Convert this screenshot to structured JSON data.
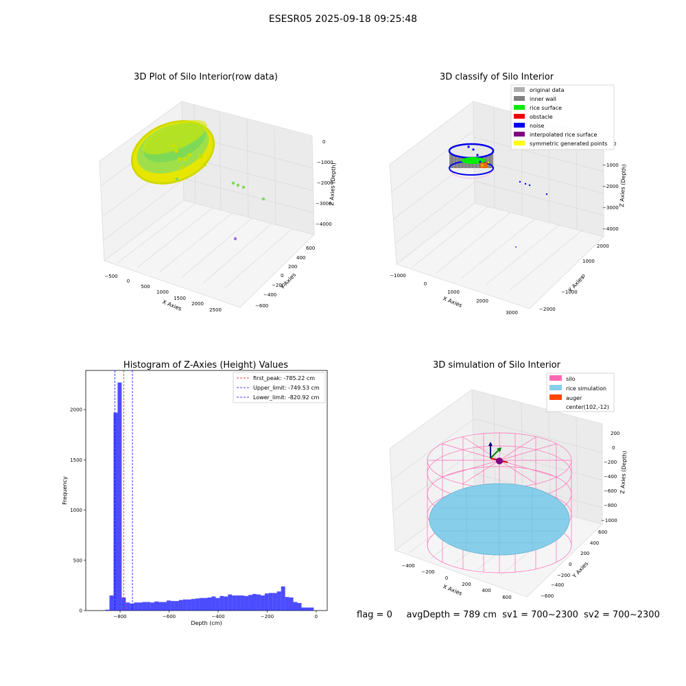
{
  "suptitle": "ESESR05 2025-09-18 09:25:48",
  "panels": {
    "raw": {
      "title": "3D Plot of Silo Interior(row data)",
      "xlabel": "X Axies",
      "ylabel": "Y Axies",
      "zlabel": "Z Axies (Depth)",
      "xticks": [
        "−500",
        "0",
        "500",
        "1000",
        "1500",
        "2000",
        "2500"
      ],
      "yticks": [
        "−600",
        "−400",
        "−200",
        "0",
        "200",
        "400",
        "600"
      ],
      "zticks": [
        "0",
        "−1000",
        "−2000",
        "−3000",
        "−4000"
      ]
    },
    "classify": {
      "title": "3D classify of Silo Interior",
      "xlabel": "X Axies",
      "ylabel": "Y Axies",
      "zlabel": "Z Axies (Depth)",
      "xticks": [
        "−1000",
        "0",
        "1000",
        "2000",
        "3000"
      ],
      "yticks": [
        "−2000",
        "−1000",
        "0",
        "1000",
        "2000"
      ],
      "zticks": [
        "0",
        "−1000",
        "−2000",
        "−3000",
        "−4000"
      ],
      "legend": [
        {
          "label": "original data",
          "color": "#b0b0b0"
        },
        {
          "label": "inner wall",
          "color": "#808080"
        },
        {
          "label": "rice surface",
          "color": "#00ee00"
        },
        {
          "label": "obstacle",
          "color": "#ee0000"
        },
        {
          "label": "noise",
          "color": "#0000ee"
        },
        {
          "label": "interpolated rice surface",
          "color": "#800080"
        },
        {
          "label": "symmetric generated points",
          "color": "#ffff00"
        }
      ]
    },
    "simulation": {
      "title": "3D simulation of Silo Interior",
      "xlabel": "X Axies",
      "ylabel": "Y Axies",
      "zlabel": "Z Axies (Depth)",
      "xticks": [
        "−400",
        "−200",
        "0",
        "200",
        "400",
        "600"
      ],
      "yticks": [
        "−600",
        "−400",
        "−200",
        "0",
        "200",
        "400",
        "600"
      ],
      "zticks": [
        "200",
        "0",
        "−200",
        "−400",
        "−600",
        "−800",
        "−1000"
      ],
      "legend": [
        {
          "label": "silo",
          "color": "#ff69b4"
        },
        {
          "label": "rice simulation",
          "color": "#87ceeb"
        },
        {
          "label": "auger",
          "color": "#ff4500"
        },
        {
          "label": "center(102,-12)",
          "color": ""
        }
      ]
    }
  },
  "chart_data": {
    "type": "bar",
    "title": "Histogram of Z-Axies (Height) Values",
    "xlabel": "Depth (cm)",
    "ylabel": "Frequency",
    "xlim": [
      -940,
      45
    ],
    "ylim": [
      0,
      2390
    ],
    "xticks": [
      -800,
      -600,
      -400,
      -200,
      0
    ],
    "yticks": [
      0,
      500,
      1000,
      1500,
      2000
    ],
    "bar_color": "#0000ff",
    "bin_width": 16.7,
    "bins": [
      {
        "x": -851.7,
        "v": 8
      },
      {
        "x": -835.0,
        "v": 150
      },
      {
        "x": -818.3,
        "v": 1970
      },
      {
        "x": -801.7,
        "v": 2270
      },
      {
        "x": -785.0,
        "v": 130
      },
      {
        "x": -768.3,
        "v": 80
      },
      {
        "x": -751.7,
        "v": 70
      },
      {
        "x": -735.0,
        "v": 80
      },
      {
        "x": -718.3,
        "v": 80
      },
      {
        "x": -701.7,
        "v": 85
      },
      {
        "x": -685.0,
        "v": 85
      },
      {
        "x": -668.3,
        "v": 80
      },
      {
        "x": -651.7,
        "v": 90
      },
      {
        "x": -635.0,
        "v": 85
      },
      {
        "x": -618.3,
        "v": 85
      },
      {
        "x": -601.7,
        "v": 100
      },
      {
        "x": -585.0,
        "v": 95
      },
      {
        "x": -568.3,
        "v": 95
      },
      {
        "x": -551.7,
        "v": 105
      },
      {
        "x": -535.0,
        "v": 110
      },
      {
        "x": -518.3,
        "v": 110
      },
      {
        "x": -501.7,
        "v": 115
      },
      {
        "x": -485.0,
        "v": 120
      },
      {
        "x": -468.3,
        "v": 125
      },
      {
        "x": -451.7,
        "v": 125
      },
      {
        "x": -435.0,
        "v": 130
      },
      {
        "x": -418.3,
        "v": 140
      },
      {
        "x": -401.7,
        "v": 125
      },
      {
        "x": -385.0,
        "v": 145
      },
      {
        "x": -368.3,
        "v": 140
      },
      {
        "x": -351.7,
        "v": 160
      },
      {
        "x": -335.0,
        "v": 150
      },
      {
        "x": -318.3,
        "v": 150
      },
      {
        "x": -301.7,
        "v": 150
      },
      {
        "x": -285.0,
        "v": 145
      },
      {
        "x": -268.3,
        "v": 155
      },
      {
        "x": -251.7,
        "v": 165
      },
      {
        "x": -235.0,
        "v": 160
      },
      {
        "x": -218.3,
        "v": 150
      },
      {
        "x": -201.7,
        "v": 170
      },
      {
        "x": -185.0,
        "v": 175
      },
      {
        "x": -168.3,
        "v": 175
      },
      {
        "x": -151.7,
        "v": 190
      },
      {
        "x": -135.0,
        "v": 240
      },
      {
        "x": -118.3,
        "v": 135
      },
      {
        "x": -101.7,
        "v": 130
      },
      {
        "x": -85.0,
        "v": 85
      },
      {
        "x": -68.3,
        "v": 75
      },
      {
        "x": -51.7,
        "v": 30
      },
      {
        "x": -35.0,
        "v": 30
      },
      {
        "x": -18.3,
        "v": 30
      }
    ],
    "vlines": [
      {
        "label": "first_peak: -785.22 cm",
        "value": -785.22,
        "color": "#ff0000"
      },
      {
        "label": "Upper_limit: -749.53 cm",
        "value": -749.53,
        "color": "#0000ff"
      },
      {
        "label": "Lower_limit: -820.92 cm",
        "value": -820.92,
        "color": "#0000ff"
      }
    ],
    "legend_position": "upper right"
  },
  "status": {
    "flag": "flag = 0",
    "avg_depth": "avgDepth = 789 cm",
    "sv1": "sv1 = 700~2300",
    "sv2": "sv2 = 700~2300"
  }
}
